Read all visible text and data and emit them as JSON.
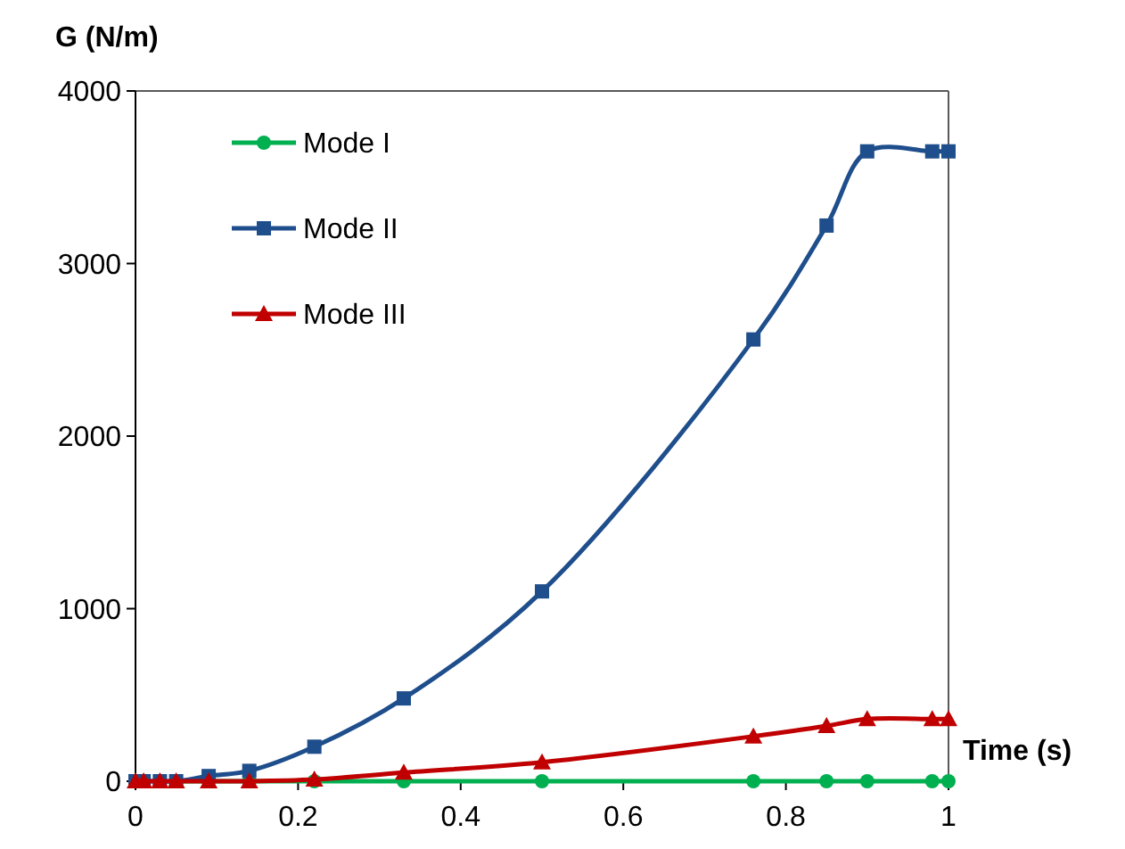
{
  "chart_data": {
    "type": "line",
    "xlabel": "Time (s)",
    "ylabel": "G (N/m)",
    "xlim": [
      0,
      1
    ],
    "xticks": [
      0,
      0.2,
      0.4,
      0.6,
      0.8,
      1
    ],
    "ylim": [
      0,
      4000
    ],
    "yticks": [
      0,
      1000,
      2000,
      3000,
      4000
    ],
    "x": [
      0,
      0.01,
      0.03,
      0.05,
      0.09,
      0.14,
      0.22,
      0.33,
      0.5,
      0.76,
      0.85,
      0.9,
      0.98,
      1
    ],
    "grid": false,
    "legend": "top left",
    "line_style": "solid",
    "series": [
      {
        "name": "Mode I",
        "color": "#00b050",
        "marker": "circle",
        "values": [
          null,
          null,
          null,
          0,
          0,
          0,
          0,
          0,
          0,
          0,
          0,
          0,
          0,
          0
        ]
      },
      {
        "name": "Mode II",
        "color": "#1f4e8c",
        "marker": "square",
        "values": [
          0,
          0,
          0,
          0,
          30,
          60,
          200,
          480,
          1100,
          2560,
          3220,
          3650,
          3650,
          3650
        ]
      },
      {
        "name": "Mode III",
        "color": "#c00000",
        "marker": "triangle",
        "values": [
          0,
          0,
          0,
          0,
          0,
          0,
          10,
          50,
          110,
          260,
          320,
          360,
          360,
          360
        ]
      }
    ]
  }
}
